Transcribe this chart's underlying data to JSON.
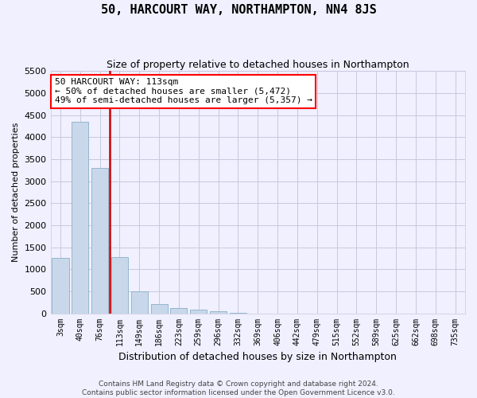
{
  "title": "50, HARCOURT WAY, NORTHAMPTON, NN4 8JS",
  "subtitle": "Size of property relative to detached houses in Northampton",
  "xlabel": "Distribution of detached houses by size in Northampton",
  "ylabel": "Number of detached properties",
  "footer_line1": "Contains HM Land Registry data © Crown copyright and database right 2024.",
  "footer_line2": "Contains public sector information licensed under the Open Government Licence v3.0.",
  "annotation_title": "50 HARCOURT WAY: 113sqm",
  "annotation_line2": "← 50% of detached houses are smaller (5,472)",
  "annotation_line3": "49% of semi-detached houses are larger (5,357) →",
  "property_bin_index": 3,
  "bar_color": "#c8d8ea",
  "bar_edge_color": "#8aafc8",
  "line_color": "#cc0000",
  "background_color": "#f0f0ff",
  "grid_color": "#c8c8dc",
  "categories": [
    "3sqm",
    "40sqm",
    "76sqm",
    "113sqm",
    "149sqm",
    "186sqm",
    "223sqm",
    "259sqm",
    "296sqm",
    "332sqm",
    "369sqm",
    "406sqm",
    "442sqm",
    "479sqm",
    "515sqm",
    "552sqm",
    "589sqm",
    "625sqm",
    "662sqm",
    "698sqm",
    "735sqm"
  ],
  "values": [
    1250,
    4350,
    3300,
    1270,
    500,
    215,
    110,
    80,
    55,
    10,
    0,
    0,
    0,
    0,
    0,
    0,
    0,
    0,
    0,
    0,
    0
  ],
  "ylim": [
    0,
    5500
  ],
  "yticks": [
    0,
    500,
    1000,
    1500,
    2000,
    2500,
    3000,
    3500,
    4000,
    4500,
    5000,
    5500
  ],
  "title_fontsize": 11,
  "subtitle_fontsize": 9,
  "ylabel_fontsize": 8,
  "xlabel_fontsize": 9,
  "tick_fontsize": 8,
  "xtick_fontsize": 7,
  "footer_fontsize": 6.5,
  "annot_fontsize": 8
}
